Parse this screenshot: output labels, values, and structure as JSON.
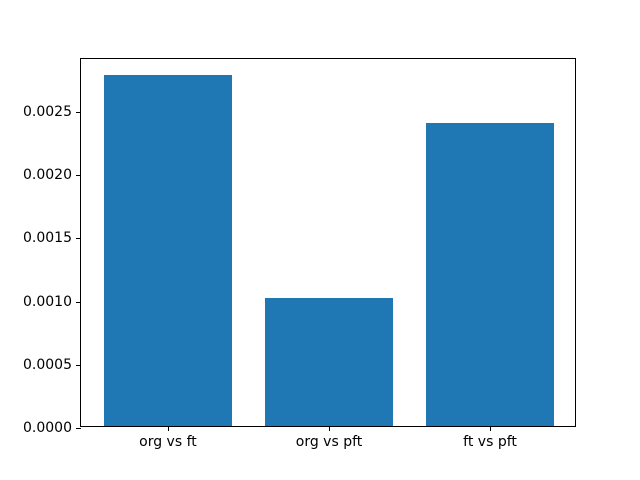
{
  "chart_data": {
    "type": "bar",
    "categories": [
      "org vs ft",
      "org vs pft",
      "ft vs pft"
    ],
    "values": [
      0.00278,
      0.00101,
      0.0024
    ],
    "title": "",
    "xlabel": "",
    "ylabel": "",
    "ylim": [
      0,
      0.002919
    ],
    "xlim": [
      -0.54,
      2.54
    ],
    "bar_width": 0.8,
    "bar_color": "#1f77b4",
    "yticks": [
      0.0,
      0.0005,
      0.001,
      0.0015,
      0.002,
      0.0025
    ],
    "ytick_labels": [
      "0.0000",
      "0.0005",
      "0.0010",
      "0.0015",
      "0.0020",
      "0.0025"
    ],
    "grid": false,
    "legend": null,
    "axis_color": "#000000",
    "background_color": "#ffffff"
  }
}
